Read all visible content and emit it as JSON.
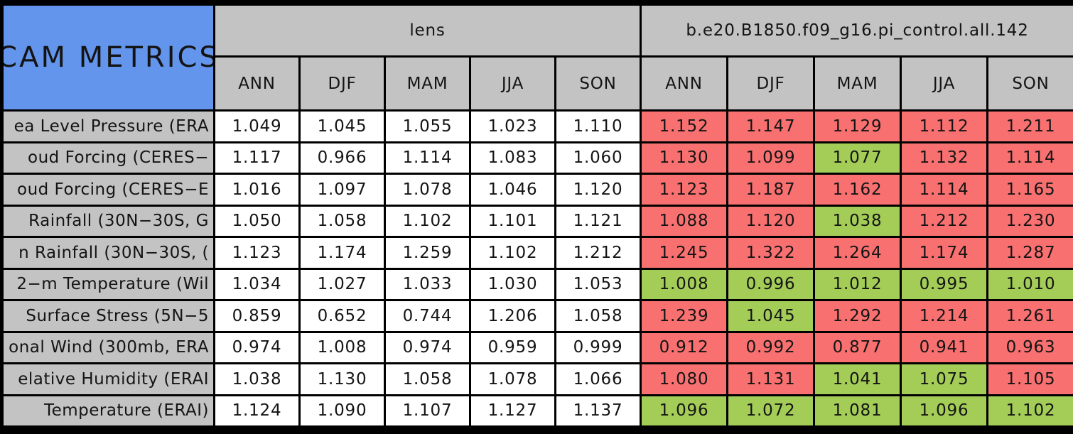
{
  "title": "CAM METRICS",
  "colors": {
    "title_background": "#6495ED",
    "header_background": "#C3C3C3",
    "label_background": "#C3C3C3",
    "reference_cell_background": "#FFFFFF",
    "worse_cell_red": "#F87070",
    "better_cell_green": "#A4CD58",
    "border": "#000000",
    "text": "#141414"
  },
  "chart_data": {
    "type": "table",
    "title": "CAM METRICS",
    "column_groups": [
      {
        "label": "lens"
      },
      {
        "label": "b.e20.B1850.f09_g16.pi_control.all.142"
      }
    ],
    "seasons": [
      "ANN",
      "DJF",
      "MAM",
      "JJA",
      "SON"
    ],
    "rows": [
      {
        "label": "ea Level Pressure (ERA",
        "lens": [
          "1.049",
          "1.045",
          "1.055",
          "1.023",
          "1.110"
        ],
        "model": [
          "1.152",
          "1.147",
          "1.129",
          "1.112",
          "1.211"
        ],
        "model_colors": [
          "red",
          "red",
          "red",
          "red",
          "red"
        ]
      },
      {
        "label": "oud Forcing (CERES−",
        "lens": [
          "1.117",
          "0.966",
          "1.114",
          "1.083",
          "1.060"
        ],
        "model": [
          "1.130",
          "1.099",
          "1.077",
          "1.132",
          "1.114"
        ],
        "model_colors": [
          "red",
          "red",
          "green",
          "red",
          "red"
        ]
      },
      {
        "label": "oud Forcing (CERES−E",
        "lens": [
          "1.016",
          "1.097",
          "1.078",
          "1.046",
          "1.120"
        ],
        "model": [
          "1.123",
          "1.187",
          "1.162",
          "1.114",
          "1.165"
        ],
        "model_colors": [
          "red",
          "red",
          "red",
          "red",
          "red"
        ]
      },
      {
        "label": "Rainfall (30N−30S, G",
        "lens": [
          "1.050",
          "1.058",
          "1.102",
          "1.101",
          "1.121"
        ],
        "model": [
          "1.088",
          "1.120",
          "1.038",
          "1.212",
          "1.230"
        ],
        "model_colors": [
          "red",
          "red",
          "green",
          "red",
          "red"
        ]
      },
      {
        "label": "n Rainfall (30N−30S, (",
        "lens": [
          "1.123",
          "1.174",
          "1.259",
          "1.102",
          "1.212"
        ],
        "model": [
          "1.245",
          "1.322",
          "1.264",
          "1.174",
          "1.287"
        ],
        "model_colors": [
          "red",
          "red",
          "red",
          "red",
          "red"
        ]
      },
      {
        "label": "2−m Temperature (Wil",
        "lens": [
          "1.034",
          "1.027",
          "1.033",
          "1.030",
          "1.053"
        ],
        "model": [
          "1.008",
          "0.996",
          "1.012",
          "0.995",
          "1.010"
        ],
        "model_colors": [
          "green",
          "green",
          "green",
          "green",
          "green"
        ]
      },
      {
        "label": "Surface Stress (5N−5",
        "lens": [
          "0.859",
          "0.652",
          "0.744",
          "1.206",
          "1.058"
        ],
        "model": [
          "1.239",
          "1.045",
          "1.292",
          "1.214",
          "1.261"
        ],
        "model_colors": [
          "red",
          "green",
          "red",
          "red",
          "red"
        ]
      },
      {
        "label": "onal Wind (300mb, ERA",
        "lens": [
          "0.974",
          "1.008",
          "0.974",
          "0.959",
          "0.999"
        ],
        "model": [
          "0.912",
          "0.992",
          "0.877",
          "0.941",
          "0.963"
        ],
        "model_colors": [
          "red",
          "red",
          "red",
          "red",
          "red"
        ]
      },
      {
        "label": "elative Humidity (ERAI",
        "lens": [
          "1.038",
          "1.130",
          "1.058",
          "1.078",
          "1.066"
        ],
        "model": [
          "1.080",
          "1.131",
          "1.041",
          "1.075",
          "1.105"
        ],
        "model_colors": [
          "red",
          "red",
          "green",
          "green",
          "red"
        ]
      },
      {
        "label": "Temperature (ERAI)",
        "lens": [
          "1.124",
          "1.090",
          "1.107",
          "1.127",
          "1.137"
        ],
        "model": [
          "1.096",
          "1.072",
          "1.081",
          "1.096",
          "1.102"
        ],
        "model_colors": [
          "green",
          "green",
          "green",
          "green",
          "green"
        ]
      }
    ]
  }
}
